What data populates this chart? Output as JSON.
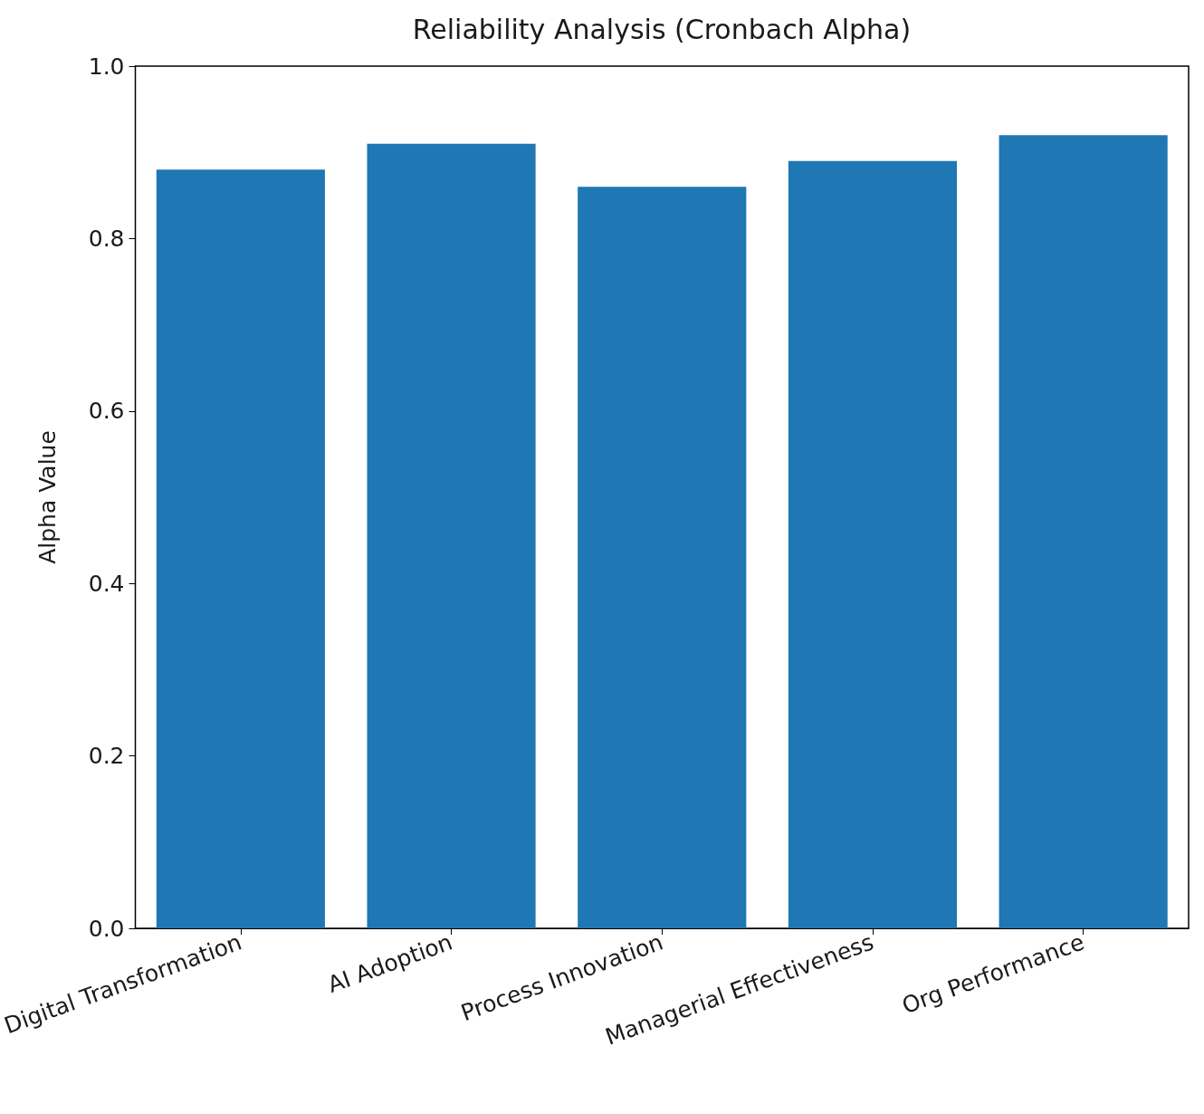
{
  "chart_data": {
    "type": "bar",
    "title": "Reliability Analysis (Cronbach Alpha)",
    "ylabel": "Alpha Value",
    "categories": [
      "Digital Transformation",
      "AI Adoption",
      "Process Innovation",
      "Managerial Effectiveness",
      "Org Performance"
    ],
    "values": [
      0.88,
      0.91,
      0.86,
      0.89,
      0.92
    ],
    "color": "#1f77b4",
    "ylim": [
      0,
      1
    ],
    "yticks": [
      {
        "value": 0,
        "label": "0.0"
      },
      {
        "value": 0.2,
        "label": "0.2"
      },
      {
        "value": 0.4,
        "label": "0.4"
      },
      {
        "value": 0.6,
        "label": "0.6"
      },
      {
        "value": 0.8,
        "label": "0.8"
      },
      {
        "value": 1,
        "label": "1.0"
      }
    ],
    "grid": false
  }
}
